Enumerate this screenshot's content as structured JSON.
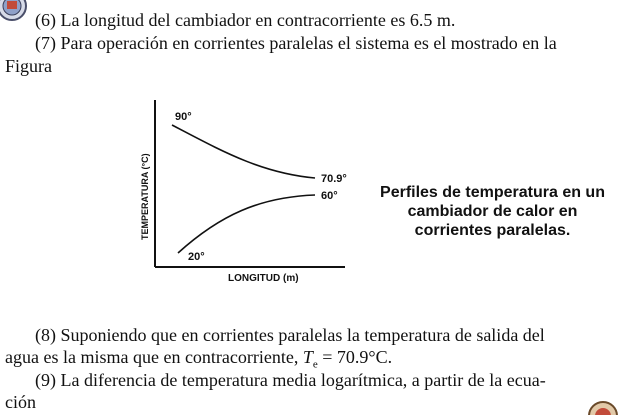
{
  "paragraphs": {
    "p6": "(6) La longitud del cambiador en contracorriente es 6.5 m.",
    "p7_line1": "(7) Para operación en corrientes paralelas el sistema es el mostrado en la",
    "p7_line2": "Figura",
    "p8_line1": "(8) Suponiendo que en corrientes paralelas la temperatura de salida del",
    "p8_line2_pre": "agua es la misma que en contracorriente, ",
    "p8_T": "T",
    "p8_sub": "e",
    "p8_line2_post": " = 70.9°C.",
    "p9_line1": "(9) La diferencia de temperatura media logarítmica, a partir de la ecua-",
    "p9_line2": "ción"
  },
  "figure": {
    "ylabel": "TEMPERATURA (°C)",
    "xlabel": "LONGITUD (m)",
    "label_90": "90°",
    "label_709": "70.9°",
    "label_60": "60°",
    "label_20": "20°",
    "caption": "Perfiles de temperatura en un cambiador de calor en corrientes paralelas."
  }
}
